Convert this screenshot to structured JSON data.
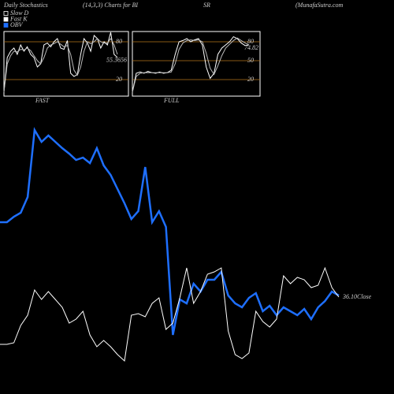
{
  "header": {
    "title": "Daily Stochastics",
    "params": "(14,3,3) Charts for BI",
    "symbol": "SR",
    "source": "(MunafaSutra.com"
  },
  "legend": [
    {
      "series": "chart_data.0.series.1",
      "style": "outline"
    },
    {
      "series": "chart_data.0.series.0",
      "style": "filled"
    },
    {
      "series": "chart_data.2.series.0",
      "style": "filled"
    }
  ],
  "chart_data": [
    {
      "type": "line",
      "title": "FAST",
      "ylim": [
        0,
        100
      ],
      "yticks": [
        80,
        20
      ],
      "last_label": "55.3656",
      "series": [
        {
          "name": "Fast K",
          "color": "#ffffff",
          "values": [
            0,
            55,
            65,
            70,
            60,
            75,
            65,
            72,
            60,
            55,
            40,
            45,
            75,
            78,
            72,
            80,
            85,
            70,
            68,
            82,
            30,
            25,
            28,
            60,
            85,
            78,
            65,
            90,
            85,
            70,
            80,
            75,
            95,
            60,
            55
          ]
        },
        {
          "name": "Slow D",
          "color": "#bbbbbb",
          "values": [
            0,
            45,
            58,
            65,
            64,
            68,
            67,
            70,
            66,
            58,
            50,
            45,
            55,
            70,
            75,
            77,
            80,
            76,
            72,
            74,
            60,
            35,
            27,
            40,
            65,
            80,
            77,
            80,
            85,
            80,
            78,
            78,
            85,
            75,
            60
          ]
        }
      ]
    },
    {
      "type": "line",
      "title": "FULL",
      "ylim": [
        0,
        100
      ],
      "yticks": [
        80,
        50,
        20
      ],
      "last_label": "74.82",
      "series": [
        {
          "color": "#ffffff",
          "values": [
            0,
            30,
            32,
            30,
            33,
            31,
            30,
            32,
            30,
            31,
            35,
            60,
            80,
            82,
            85,
            80,
            83,
            85,
            75,
            40,
            22,
            30,
            60,
            70,
            75,
            80,
            88,
            85,
            78,
            74,
            75
          ]
        },
        {
          "color": "#bbbbbb",
          "values": [
            0,
            25,
            30,
            31,
            31,
            31,
            31,
            31,
            31,
            31,
            32,
            45,
            68,
            78,
            82,
            83,
            82,
            83,
            80,
            62,
            38,
            28,
            42,
            58,
            70,
            76,
            82,
            86,
            82,
            78,
            75
          ]
        }
      ]
    },
    {
      "type": "line",
      "ylim": [
        0,
        320
      ],
      "close_label": "36.10",
      "series": [
        {
          "name": "OBV",
          "color": "#1e6fff",
          "values": [
            188,
            188,
            195,
            200,
            220,
            305,
            290,
            298,
            290,
            282,
            275,
            267,
            270,
            263,
            282,
            260,
            248,
            230,
            212,
            192,
            202,
            258,
            188,
            202,
            182,
            45,
            90,
            85,
            110,
            100,
            115,
            115,
            125,
            95,
            85,
            80,
            92,
            98,
            75,
            82,
            70,
            80,
            75,
            70,
            78,
            65,
            80,
            88,
            100,
            95
          ]
        },
        {
          "name": "Close",
          "color": "#ffffff",
          "values": [
            33,
            33,
            35,
            57,
            70,
            102,
            90,
            100,
            90,
            80,
            60,
            65,
            75,
            45,
            30,
            38,
            30,
            20,
            12,
            70,
            72,
            68,
            85,
            92,
            52,
            60,
            92,
            130,
            85,
            100,
            122,
            125,
            130,
            50,
            20,
            15,
            22,
            75,
            62,
            55,
            65,
            120,
            110,
            118,
            115,
            105,
            108,
            130,
            105,
            93
          ]
        }
      ]
    }
  ]
}
